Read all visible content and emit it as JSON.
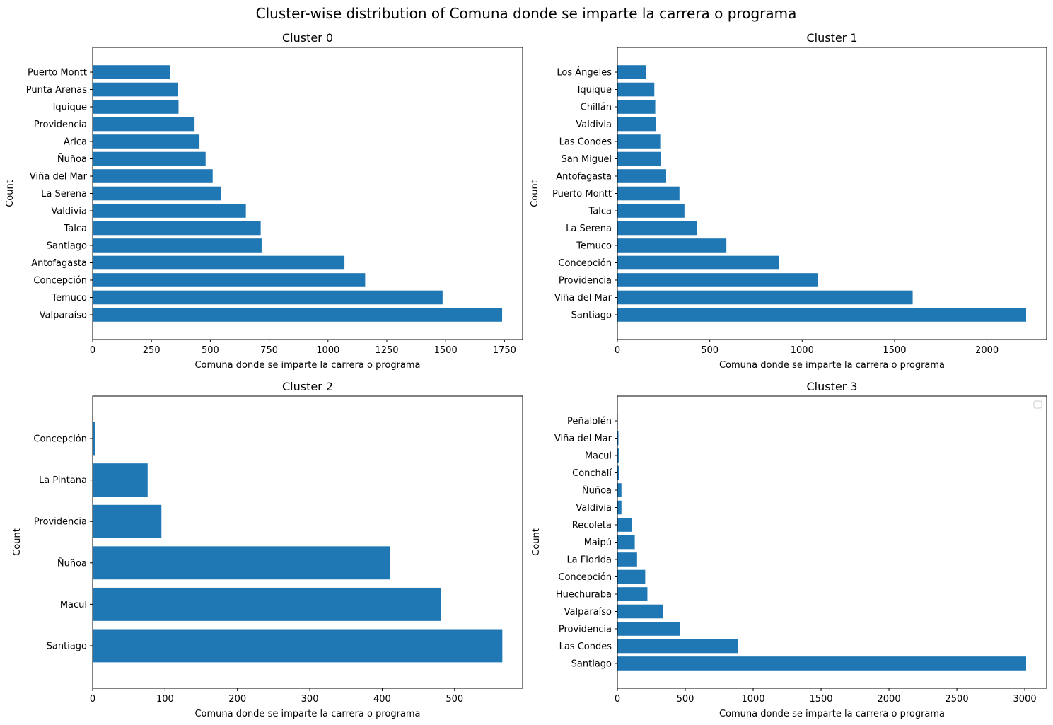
{
  "figure": {
    "title": "Cluster-wise distribution of Comuna donde se imparte la carrera o programa"
  },
  "colors": {
    "bar": "#1f77b4",
    "axis": "#000000"
  },
  "chart_data": [
    {
      "type": "bar",
      "orientation": "horizontal",
      "title": "Cluster 0",
      "xlabel": "Comuna donde se imparte la carrera o programa",
      "ylabel": "Count",
      "xlim": [
        0,
        1827
      ],
      "xticks": [
        0,
        250,
        500,
        750,
        1000,
        1250,
        1500,
        1750
      ],
      "grid": false,
      "categories": [
        "Valparaíso",
        "Temuco",
        "Concepción",
        "Antofagasta",
        "Santiago",
        "Talca",
        "Valdivia",
        "La Serena",
        "Viña del Mar",
        "Ñuñoa",
        "Arica",
        "Providencia",
        "Iquique",
        "Punta Arenas",
        "Puerto Montt"
      ],
      "values": [
        1740,
        1487,
        1158,
        1070,
        718,
        714,
        651,
        546,
        510,
        480,
        454,
        433,
        365,
        361,
        330
      ]
    },
    {
      "type": "bar",
      "orientation": "horizontal",
      "title": "Cluster 1",
      "xlabel": "Comuna donde se imparte la carrera o programa",
      "ylabel": "Count",
      "xlim": [
        0,
        2323
      ],
      "xticks": [
        0,
        500,
        1000,
        1500,
        2000
      ],
      "grid": false,
      "categories": [
        "Santiago",
        "Viña del Mar",
        "Providencia",
        "Concepción",
        "Temuco",
        "La Serena",
        "Talca",
        "Puerto Montt",
        "Antofagasta",
        "San Miguel",
        "Las Condes",
        "Valdivia",
        "Chillán",
        "Iquique",
        "Los Ángeles"
      ],
      "values": [
        2212,
        1598,
        1083,
        873,
        590,
        430,
        363,
        336,
        264,
        237,
        232,
        210,
        205,
        200,
        156
      ]
    },
    {
      "type": "bar",
      "orientation": "horizontal",
      "title": "Cluster 2",
      "xlabel": "Comuna donde se imparte la carrera o programa",
      "ylabel": "Count",
      "xlim": [
        0,
        594
      ],
      "xticks": [
        0,
        100,
        200,
        300,
        400,
        500
      ],
      "grid": false,
      "categories": [
        "Santiago",
        "Macul",
        "Ñuñoa",
        "Providencia",
        "La Pintana",
        "Concepción"
      ],
      "values": [
        566,
        481,
        411,
        95,
        76,
        3
      ]
    },
    {
      "type": "bar",
      "orientation": "horizontal",
      "title": "Cluster 3",
      "xlabel": "Comuna donde se imparte la carrera o programa",
      "ylabel": "Count",
      "xlim": [
        0,
        3161
      ],
      "xticks": [
        0,
        500,
        1000,
        1500,
        2000,
        2500,
        3000
      ],
      "grid": false,
      "legend": "top-right",
      "categories": [
        "Santiago",
        "Las Condes",
        "Providencia",
        "Valparaíso",
        "Huechuraba",
        "Concepción",
        "La Florida",
        "Maipú",
        "Recoleta",
        "Valdivia",
        "Ñuñoa",
        "Conchalí",
        "Macul",
        "Viña del Mar",
        "Peñalolén"
      ],
      "values": [
        3010,
        888,
        460,
        334,
        221,
        205,
        145,
        128,
        108,
        30,
        30,
        15,
        10,
        8,
        3
      ]
    }
  ]
}
